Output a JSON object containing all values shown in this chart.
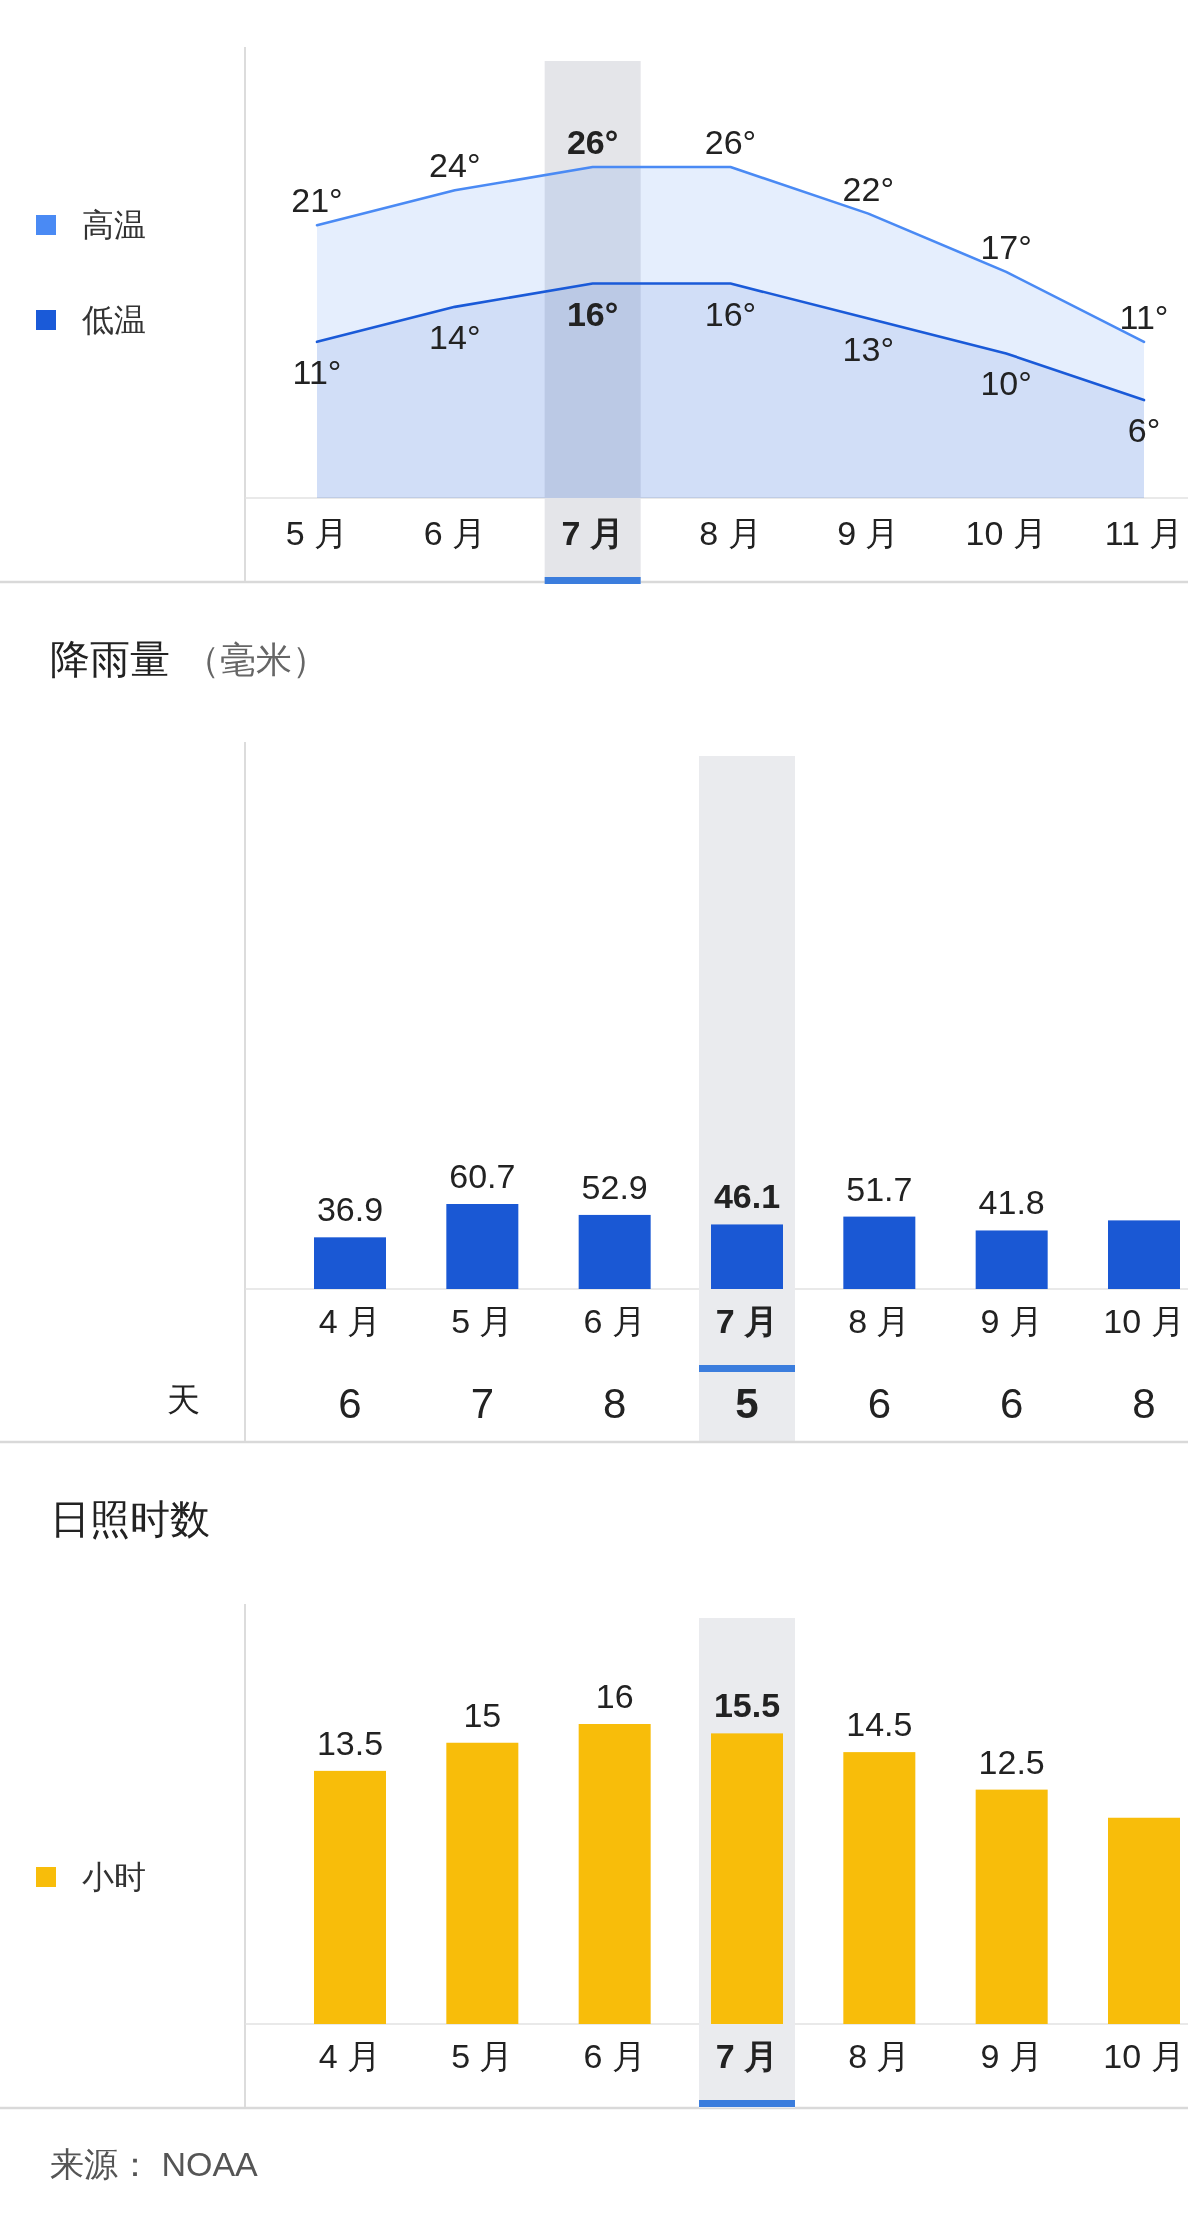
{
  "chart_data": [
    {
      "type": "area",
      "categories": [
        "5 月",
        "6 月",
        "7 月",
        "8 月",
        "9 月",
        "10 月",
        "11 月"
      ],
      "series": [
        {
          "name": "高温",
          "color": "#4a8af4",
          "values": [
            21,
            24,
            26,
            26,
            22,
            17,
            11
          ],
          "value_labels": [
            "21°",
            "24°",
            "26°",
            "26°",
            "22°",
            "17°",
            "11°"
          ]
        },
        {
          "name": "低温",
          "color": "#1a5ad8",
          "values": [
            11,
            14,
            16,
            16,
            13,
            10,
            6
          ],
          "value_labels": [
            "11°",
            "14°",
            "16°",
            "16°",
            "13°",
            "10°",
            "6°"
          ]
        }
      ],
      "legend": "left",
      "bands": [
        {
          "axis": "x",
          "from": "7 月",
          "to": "7 月",
          "color": "#e4e5e9"
        }
      ]
    },
    {
      "type": "bar",
      "title": "降雨量",
      "subtitle": "（毫米）",
      "categories": [
        "4 月",
        "5 月",
        "6 月",
        "7 月",
        "8 月",
        "9 月",
        "10 月"
      ],
      "series": [
        {
          "color": "#1a58d4",
          "values": [
            36.9,
            60.7,
            52.9,
            46.1,
            51.7,
            41.8,
            49
          ],
          "value_labels": [
            "36.9",
            "60.7",
            "52.9",
            "46.1",
            "51.7",
            "41.8",
            null
          ]
        }
      ],
      "bands": [
        {
          "axis": "x",
          "from": "7 月",
          "to": "7 月",
          "color": "#eaebee"
        }
      ]
    },
    {
      "type": "other",
      "ylabel": "天",
      "values": [
        6,
        7,
        8,
        5,
        6,
        6,
        8
      ],
      "data_labels": true
    },
    {
      "type": "bar",
      "title": "日照时数",
      "categories": [
        "4 月",
        "5 月",
        "6 月",
        "7 月",
        "8 月",
        "9 月",
        "10 月"
      ],
      "series": [
        {
          "name": "小时",
          "color": "#f8bd0a",
          "values": [
            13.5,
            15,
            16,
            15.5,
            14.5,
            12.5,
            11
          ],
          "value_labels": [
            "13.5",
            "15",
            "16",
            "15.5",
            "14.5",
            "12.5",
            null
          ]
        }
      ],
      "legend": "left",
      "bands": [
        {
          "axis": "x",
          "from": "7 月",
          "to": "7 月",
          "color": "#eaebee"
        }
      ],
      "annotations": [
        "来源： NOAA"
      ]
    }
  ]
}
